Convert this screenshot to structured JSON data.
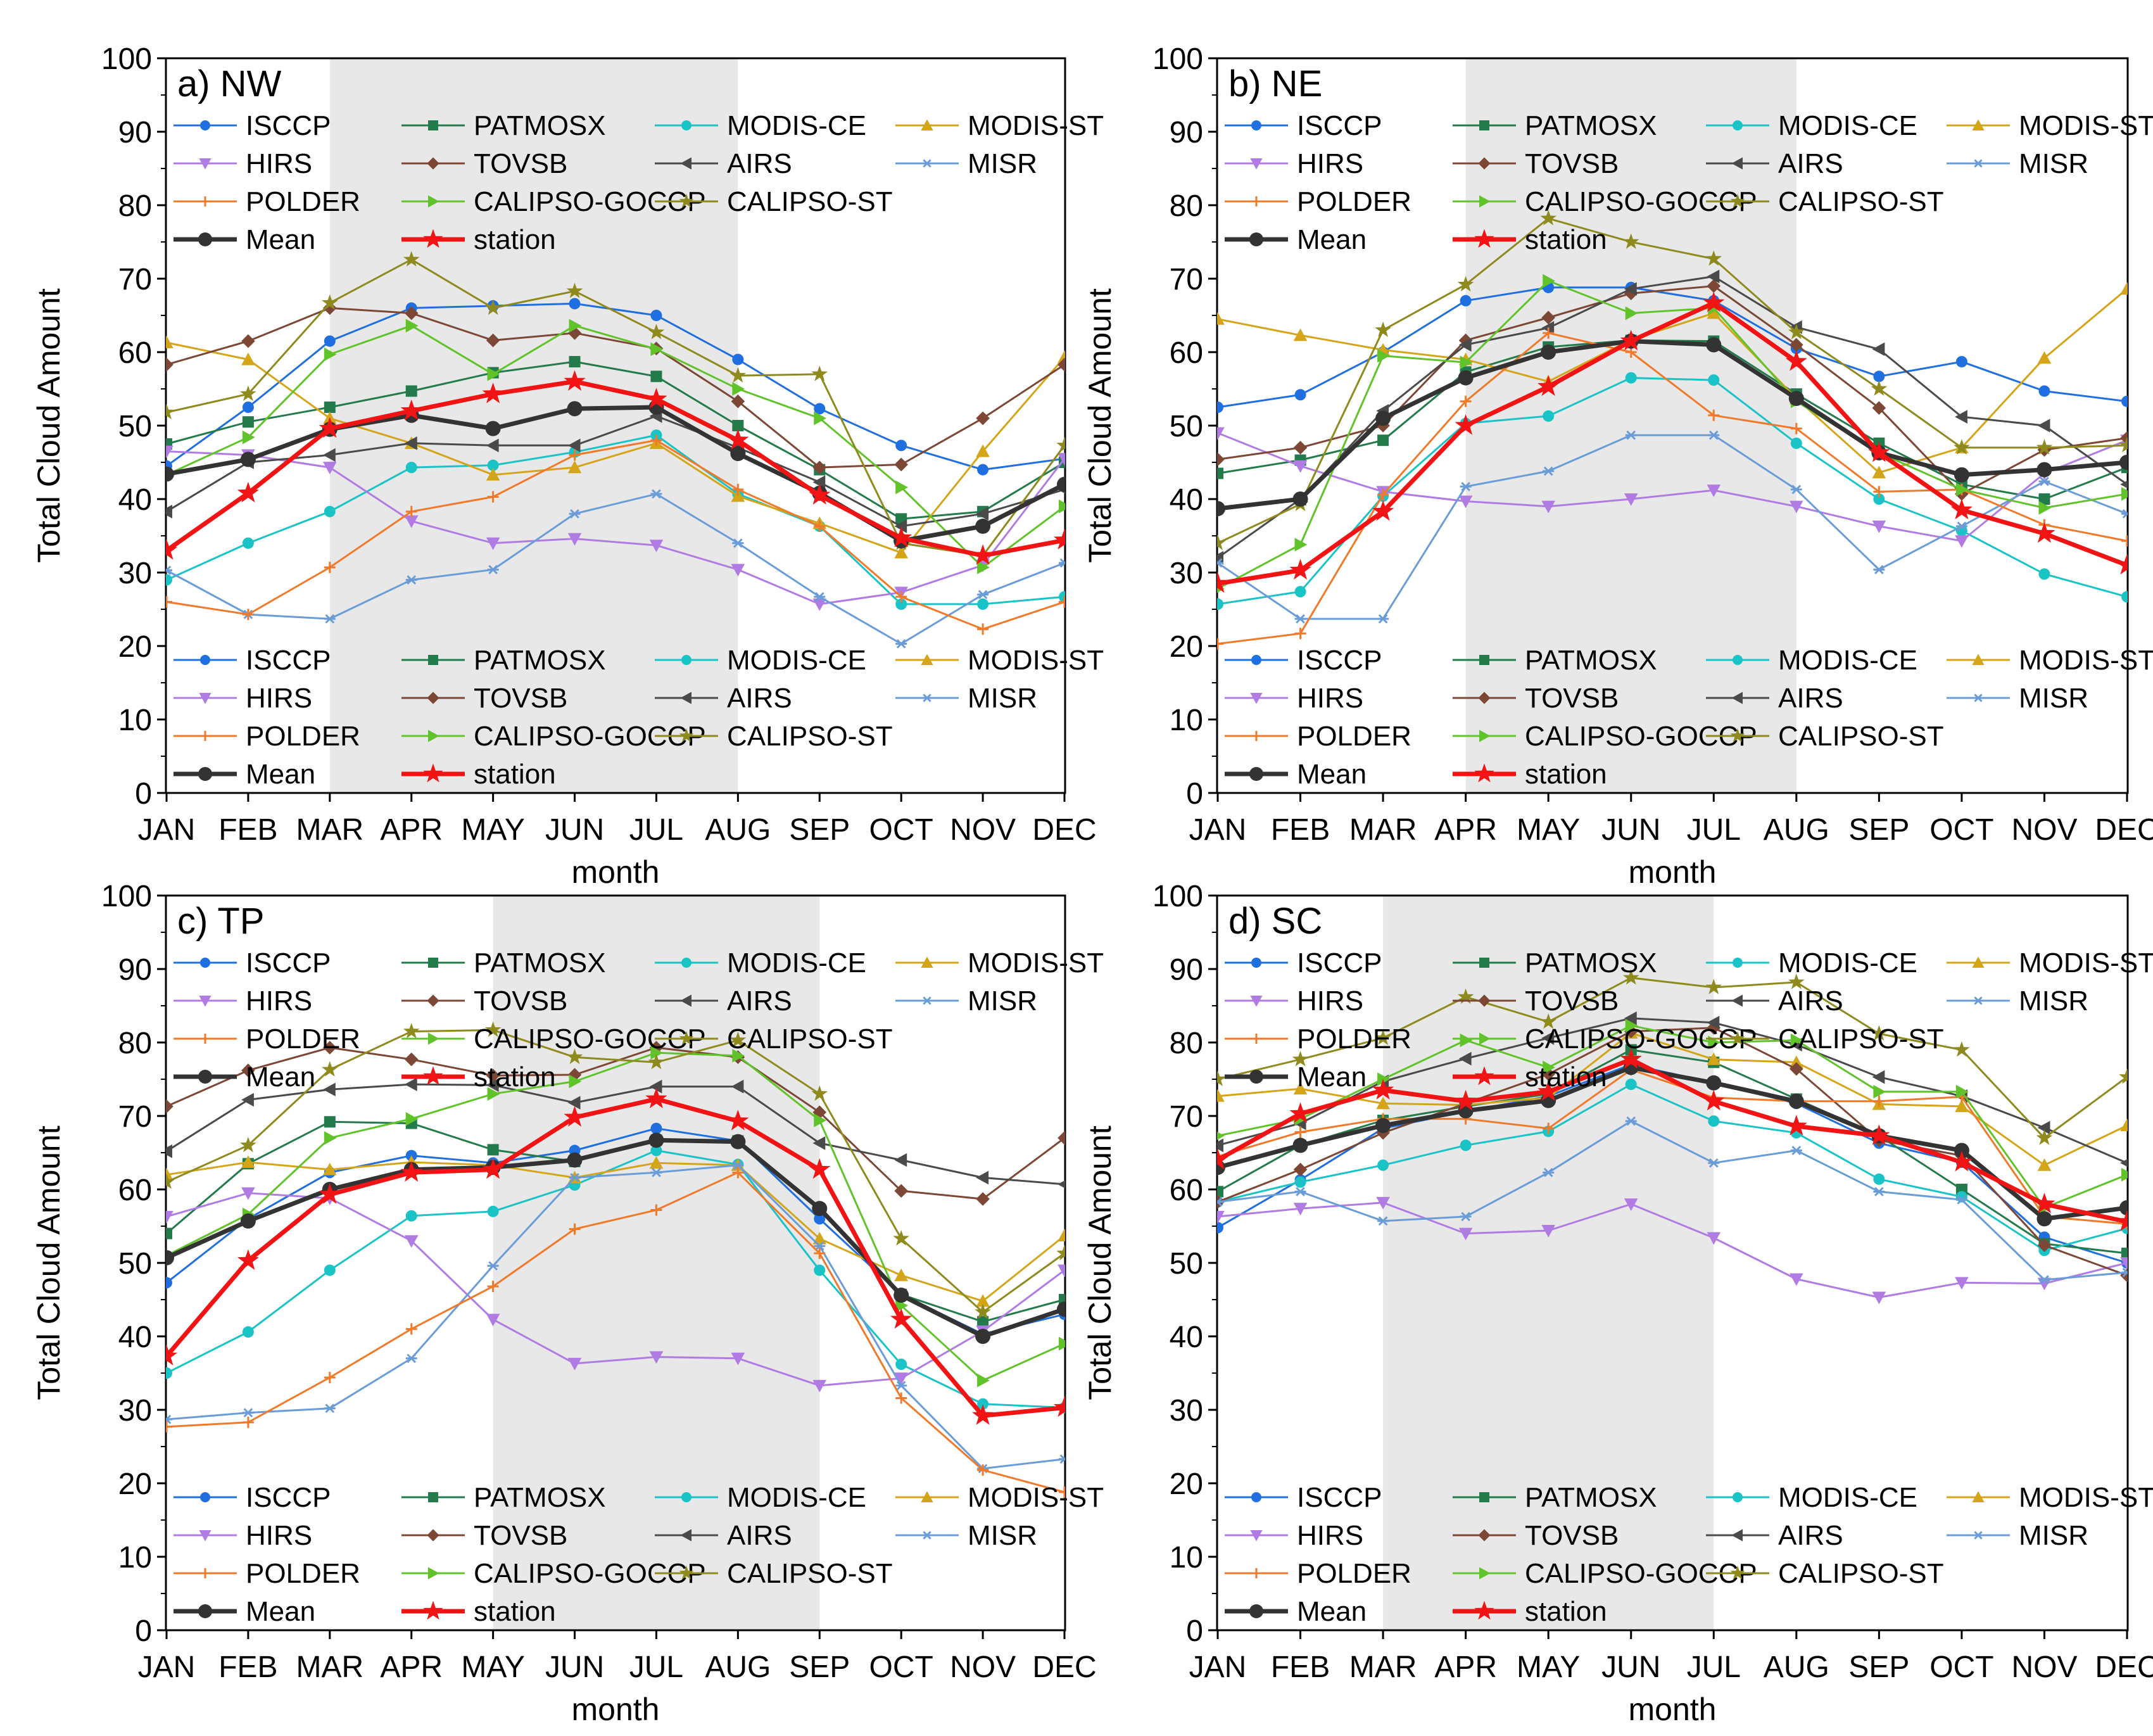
{
  "chart_data": [
    {
      "type": "line",
      "title": "a) NW",
      "xlabel": "month",
      "ylabel": "Total Cloud Amount",
      "categories": [
        "JAN",
        "FEB",
        "MAR",
        "APR",
        "MAY",
        "JUN",
        "JUL",
        "AUG",
        "SEP",
        "OCT",
        "NOV",
        "DEC"
      ],
      "yticks": [
        "0",
        "10",
        "20",
        "30",
        "40",
        "50",
        "60",
        "70",
        "80",
        "90",
        "100"
      ],
      "ylim": [
        0,
        100
      ],
      "shaded_months": [
        "MAR",
        "AUG"
      ],
      "series": [
        {
          "name": "ISCCP",
          "values": [
            44.5,
            52.5,
            61.5,
            66,
            66.3,
            66.6,
            65,
            59,
            52.3,
            47.3,
            44,
            45.5
          ]
        },
        {
          "name": "PATMOSX",
          "values": [
            47.5,
            50.5,
            52.5,
            54.7,
            57.2,
            58.7,
            56.7,
            50,
            44,
            37.3,
            38.3,
            45
          ]
        },
        {
          "name": "MODIS-CE",
          "values": [
            29,
            34,
            38.3,
            44.3,
            44.6,
            46.4,
            48.7,
            40.7,
            36.3,
            25.7,
            25.7,
            26.7
          ]
        },
        {
          "name": "MODIS-ST",
          "values": [
            61.3,
            59,
            51,
            47.6,
            43.3,
            44.3,
            47.6,
            40.4,
            36.7,
            32.7,
            46.5,
            59.3
          ]
        },
        {
          "name": "HIRS",
          "values": [
            46.5,
            46,
            44.3,
            37,
            34,
            34.6,
            33.7,
            30.4,
            25.7,
            27.3,
            31,
            45.5
          ]
        },
        {
          "name": "TOVSB",
          "values": [
            58.3,
            61.5,
            66,
            65.3,
            61.6,
            62.6,
            60.5,
            53.3,
            44.3,
            44.7,
            51,
            58.3
          ]
        },
        {
          "name": "AIRS",
          "values": [
            38.3,
            45,
            46,
            47.6,
            47.3,
            47.3,
            51.3,
            47,
            42.3,
            36.3,
            38,
            41.3
          ]
        },
        {
          "name": "MISR",
          "values": [
            30.3,
            24.3,
            23.7,
            29,
            30.4,
            38,
            40.7,
            34,
            26.7,
            20.3,
            27,
            31.3
          ]
        },
        {
          "name": "POLDER",
          "values": [
            26,
            24.3,
            30.7,
            38.3,
            40.3,
            46,
            48,
            41.3,
            36.3,
            26.7,
            22.3,
            26
          ]
        },
        {
          "name": "CALIPSO-GOCCP",
          "values": [
            43.3,
            48.4,
            59.7,
            63.6,
            57,
            63.6,
            60.4,
            55,
            51,
            41.6,
            30.7,
            39
          ]
        },
        {
          "name": "CALIPSO-ST",
          "values": [
            51.8,
            54.3,
            66.7,
            72.6,
            66,
            68.3,
            62.7,
            56.8,
            57,
            34,
            32.3,
            47.3
          ]
        },
        {
          "name": "Mean",
          "values": [
            43.4,
            45.4,
            49.5,
            51.4,
            49.6,
            52.3,
            52.5,
            46.2,
            40.8,
            34.3,
            36.3,
            42
          ]
        },
        {
          "name": "station",
          "values": [
            33,
            40.8,
            49.6,
            52,
            54.3,
            56,
            53.6,
            48,
            40.5,
            34.7,
            32.3,
            34.4
          ]
        }
      ]
    },
    {
      "type": "line",
      "title": "b) NE",
      "xlabel": "month",
      "ylabel": "Total Cloud Amount",
      "categories": [
        "JAN",
        "FEB",
        "MAR",
        "APR",
        "MAY",
        "JUN",
        "JUL",
        "AUG",
        "SEP",
        "OCT",
        "NOV",
        "DEC"
      ],
      "yticks": [
        "0",
        "10",
        "20",
        "30",
        "40",
        "50",
        "60",
        "70",
        "80",
        "90",
        "100"
      ],
      "ylim": [
        0,
        100
      ],
      "shaded_months": [
        "APR",
        "AUG"
      ],
      "series": [
        {
          "name": "ISCCP",
          "values": [
            52.5,
            54.2,
            60,
            67,
            68.8,
            68.8,
            67,
            60.5,
            56.7,
            58.7,
            54.7,
            53.3
          ]
        },
        {
          "name": "PATMOSX",
          "values": [
            43.5,
            45.3,
            48,
            57.3,
            60.7,
            61.6,
            61.5,
            54.3,
            47.6,
            42,
            40,
            44.3
          ]
        },
        {
          "name": "MODIS-CE",
          "values": [
            25.7,
            27.4,
            40.4,
            50.3,
            51.3,
            56.5,
            56.2,
            47.6,
            40,
            35.7,
            29.8,
            26.7
          ]
        },
        {
          "name": "MODIS-ST",
          "values": [
            64.5,
            62.3,
            60.3,
            59,
            56,
            61.7,
            65.3,
            53.7,
            43.6,
            47,
            59.2,
            68.6
          ]
        },
        {
          "name": "HIRS",
          "values": [
            49,
            44.5,
            41,
            39.7,
            39,
            40,
            41.2,
            39,
            36.3,
            34.3,
            43.5,
            48
          ]
        },
        {
          "name": "TOVSB",
          "values": [
            45.4,
            47,
            50,
            61.6,
            64.7,
            68,
            69,
            61,
            52.4,
            40.7,
            46.7,
            48.3
          ]
        },
        {
          "name": "AIRS",
          "values": [
            32,
            40,
            52,
            61,
            63.3,
            68.6,
            70.3,
            63.4,
            60.4,
            51.2,
            50,
            42
          ]
        },
        {
          "name": "MISR",
          "values": [
            31.3,
            23.7,
            23.7,
            41.7,
            43.8,
            48.7,
            48.7,
            41.3,
            30.4,
            36.3,
            42.4,
            38
          ]
        },
        {
          "name": "POLDER",
          "values": [
            20.3,
            21.7,
            40.6,
            53.3,
            62.6,
            60,
            51.4,
            49.6,
            41,
            41.3,
            36.5,
            34.3
          ]
        },
        {
          "name": "CALIPSO-GOCCP",
          "values": [
            27.8,
            33.8,
            59.5,
            58.6,
            69.7,
            65.3,
            66,
            53.3,
            46.3,
            41.3,
            38.8,
            40.7
          ]
        },
        {
          "name": "CALIPSO-ST",
          "values": [
            34,
            39.3,
            63,
            69.2,
            78.2,
            75,
            72.7,
            62.7,
            55,
            47,
            47,
            47.3
          ]
        },
        {
          "name": "Mean",
          "values": [
            38.7,
            40,
            51,
            56.5,
            60,
            61.5,
            61,
            53.7,
            46.3,
            43.3,
            44,
            45
          ]
        },
        {
          "name": "station",
          "values": [
            28.5,
            30.3,
            38.3,
            50,
            55.3,
            61.5,
            66.7,
            58.7,
            46.3,
            38.5,
            35.3,
            31
          ]
        }
      ]
    },
    {
      "type": "line",
      "title": "c) TP",
      "xlabel": "month",
      "ylabel": "Total Cloud Amount",
      "categories": [
        "JAN",
        "FEB",
        "MAR",
        "APR",
        "MAY",
        "JUN",
        "JUL",
        "AUG",
        "SEP",
        "OCT",
        "NOV",
        "DEC"
      ],
      "yticks": [
        "0",
        "10",
        "20",
        "30",
        "40",
        "50",
        "60",
        "70",
        "80",
        "90",
        "100"
      ],
      "ylim": [
        0,
        100
      ],
      "shaded_months": [
        "MAY",
        "SEP"
      ],
      "series": [
        {
          "name": "ISCCP",
          "values": [
            47.3,
            56,
            62.3,
            64.6,
            63.6,
            65.3,
            68.3,
            66.6,
            56,
            45.7,
            40.3,
            43
          ]
        },
        {
          "name": "PATMOSX",
          "values": [
            54,
            63.5,
            69.2,
            69,
            65.4,
            63.8,
            66.7,
            66.6,
            57.3,
            45.7,
            42,
            45
          ]
        },
        {
          "name": "MODIS-CE",
          "values": [
            35,
            40.6,
            49,
            56.4,
            57,
            60.6,
            65.3,
            63.4,
            49,
            36.2,
            30.8,
            30.3
          ]
        },
        {
          "name": "MODIS-ST",
          "values": [
            62,
            63.7,
            62.7,
            63.7,
            63.3,
            61.6,
            63.6,
            63.3,
            53.3,
            48.3,
            44.8,
            53.7
          ]
        },
        {
          "name": "HIRS",
          "values": [
            56.3,
            59.5,
            58.8,
            53,
            42.3,
            36.3,
            37.2,
            37,
            33.3,
            34.3,
            40.7,
            49
          ]
        },
        {
          "name": "TOVSB",
          "values": [
            71.3,
            76.2,
            79.3,
            77.7,
            75.5,
            75.6,
            79.3,
            78,
            70.5,
            59.8,
            58.7,
            67
          ]
        },
        {
          "name": "AIRS",
          "values": [
            65.2,
            72.2,
            73.6,
            74.3,
            74.2,
            71.8,
            74,
            74,
            66.3,
            64,
            61.6,
            60.7
          ]
        },
        {
          "name": "MISR",
          "values": [
            28.7,
            29.6,
            30.2,
            37,
            49.6,
            61.6,
            62.3,
            63.3,
            52.3,
            33.3,
            22,
            23.3
          ]
        },
        {
          "name": "POLDER",
          "values": [
            27.7,
            28.3,
            34.4,
            41,
            46.8,
            54.6,
            57.2,
            62.3,
            51.3,
            31.6,
            21.8,
            18.8
          ]
        },
        {
          "name": "CALIPSO-GOCCP",
          "values": [
            51,
            56.6,
            67,
            69.6,
            73,
            74.7,
            78.6,
            78.2,
            69.4,
            44.2,
            34,
            39
          ]
        },
        {
          "name": "CALIPSO-ST",
          "values": [
            61,
            66,
            76.3,
            81.5,
            81.7,
            78,
            77.3,
            80.3,
            73,
            53.3,
            43.3,
            51.3
          ]
        },
        {
          "name": "Mean",
          "values": [
            50.7,
            55.7,
            60,
            62.7,
            63,
            64,
            66.7,
            66.5,
            57.4,
            45.6,
            40,
            43.7
          ]
        },
        {
          "name": "station",
          "values": [
            37.3,
            50.3,
            59.3,
            62.3,
            62.7,
            69.8,
            72.3,
            69.3,
            62.7,
            42.3,
            29.2,
            30.3
          ]
        }
      ]
    },
    {
      "type": "line",
      "title": "d) SC",
      "xlabel": "month",
      "ylabel": "Total Cloud Amount",
      "categories": [
        "JAN",
        "FEB",
        "MAR",
        "APR",
        "MAY",
        "JUN",
        "JUL",
        "AUG",
        "SEP",
        "OCT",
        "NOV",
        "DEC"
      ],
      "yticks": [
        "0",
        "10",
        "20",
        "30",
        "40",
        "50",
        "60",
        "70",
        "80",
        "90",
        "100"
      ],
      "ylim": [
        0,
        100
      ],
      "shaded_months": [
        "MAR",
        "JUL"
      ],
      "series": [
        {
          "name": "ISCCP",
          "values": [
            54.8,
            61.3,
            68.3,
            70.6,
            72.7,
            77,
            74.5,
            71.7,
            66.3,
            63.7,
            53.5,
            50
          ]
        },
        {
          "name": "PATMOSX",
          "values": [
            59.7,
            66,
            69.4,
            71.3,
            73,
            79,
            77.3,
            72.3,
            67.3,
            60,
            52.6,
            51.3
          ]
        },
        {
          "name": "MODIS-CE",
          "values": [
            58.3,
            61,
            63.3,
            66,
            67.9,
            74.3,
            69.3,
            67.7,
            61.4,
            59,
            51.7,
            54.7
          ]
        },
        {
          "name": "MODIS-ST",
          "values": [
            72.7,
            73.7,
            71.7,
            71.5,
            72.5,
            81.3,
            77.7,
            77.3,
            71.6,
            71.3,
            63.3,
            68.7
          ]
        },
        {
          "name": "HIRS",
          "values": [
            56.3,
            57.4,
            58.2,
            54,
            54.4,
            58,
            53.4,
            47.8,
            45.3,
            47.3,
            47.2,
            50
          ]
        },
        {
          "name": "TOVSB",
          "values": [
            58.3,
            62.7,
            67.7,
            71.7,
            75.7,
            81.5,
            82,
            76.4,
            66.7,
            64.6,
            52.4,
            48.3
          ]
        },
        {
          "name": "AIRS",
          "values": [
            66,
            69,
            74.7,
            77.8,
            80.6,
            83.3,
            82.7,
            79.7,
            75.3,
            72.7,
            68.4,
            63.6
          ]
        },
        {
          "name": "MISR",
          "values": [
            58.3,
            59.7,
            55.7,
            56.3,
            62.3,
            69.3,
            63.6,
            65.3,
            59.7,
            58.6,
            47.7,
            48.7
          ]
        },
        {
          "name": "POLDER",
          "values": [
            64.5,
            67.8,
            69.6,
            69.6,
            68.3,
            76.3,
            72.5,
            72,
            72,
            72.6,
            56.3,
            55.3
          ]
        },
        {
          "name": "CALIPSO-GOCCP",
          "values": [
            67.3,
            69.6,
            75,
            80.3,
            76.6,
            82.3,
            80,
            80.3,
            73.3,
            73.3,
            57.5,
            62
          ]
        },
        {
          "name": "CALIPSO-ST",
          "values": [
            75,
            77.7,
            80.6,
            86.2,
            82.8,
            88.8,
            87.5,
            88.2,
            81.2,
            79,
            67,
            75.3
          ]
        },
        {
          "name": "Mean",
          "values": [
            63,
            66,
            68.7,
            70.7,
            72.1,
            76.6,
            74.5,
            72,
            67.3,
            65.3,
            56,
            57.5
          ]
        },
        {
          "name": "station",
          "values": [
            64,
            70.3,
            73.5,
            72,
            73.3,
            77.7,
            72,
            68.6,
            67.3,
            63.7,
            58,
            55.6
          ]
        }
      ]
    }
  ]
}
